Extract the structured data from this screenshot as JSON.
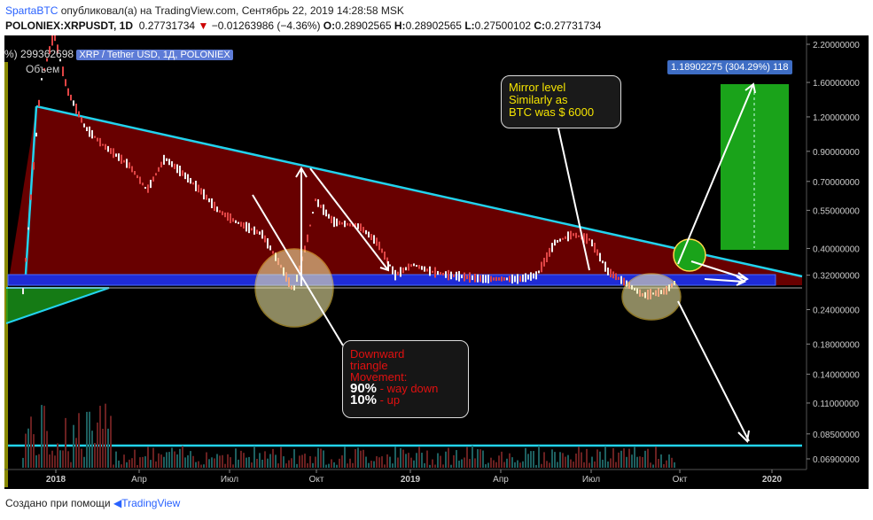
{
  "header": {
    "author": "SpartaBTC",
    "published_text": "опубликовал(а) на TradingView.com, Сентябрь 22, 2019 14:28:58 MSK",
    "symbol": "POLONIEX:XRPUSDT, 1D",
    "last_price": "0.27731734",
    "change": "−0.01263986 (−4.36%)",
    "o_label": "O:",
    "o_value": "0.28902565",
    "h_label": "H:",
    "h_value": "0.28902565",
    "l_label": "L:",
    "l_value": "0.27500102",
    "c_label": "C:",
    "c_value": "0.27731734"
  },
  "legend": {
    "volume_value": "%) 299362698",
    "symbol_chip": "XRP / Tether USD, 1Д, POLONIEX",
    "volume_label": "Объем"
  },
  "price_badge": "1.18902275 (304.29%) 118",
  "annotations": {
    "mirror_note": [
      "Mirror level",
      "Similarly as",
      "BTC was $ 6000"
    ],
    "triangle_note": {
      "line1": "Downward",
      "line2": "triangle",
      "line3": "Movement:",
      "p1": "90%",
      "p1_text": " - way down",
      "p2": "10%",
      "p2_text": " - up"
    }
  },
  "chart_data": {
    "type": "candlestick",
    "symbol": "XRPUSDT",
    "exchange": "POLONIEX",
    "interval": "1D",
    "y_scale": "log",
    "y_ticks": [
      "2.20000000",
      "1.60000000",
      "1.20000000",
      "0.90000000",
      "0.70000000",
      "0.55000000",
      "0.40000000",
      "0.32000000",
      "0.24000000",
      "0.18000000",
      "0.14000000",
      "0.11000000",
      "0.08500000",
      "0.06900000"
    ],
    "x_ticks": [
      "2018",
      "Апр",
      "Июл",
      "Окт",
      "2019",
      "Апр",
      "Июл",
      "Окт",
      "2020"
    ],
    "current_price": 0.27731734,
    "target_price": 1.18902275,
    "target_change_pct": 304.29
  },
  "footer": {
    "created_with": "Создано при помощи",
    "brand": "TradingView"
  },
  "colors": {
    "background": "#000000",
    "triangle_fill": "#7a0000",
    "trendline": "#22d3ee",
    "support_band": "#1f2bd6",
    "target_box": "#1aa31a",
    "candles": "#e04545",
    "annotation_yellow": "#f5e400",
    "annotation_red": "#e01010"
  }
}
